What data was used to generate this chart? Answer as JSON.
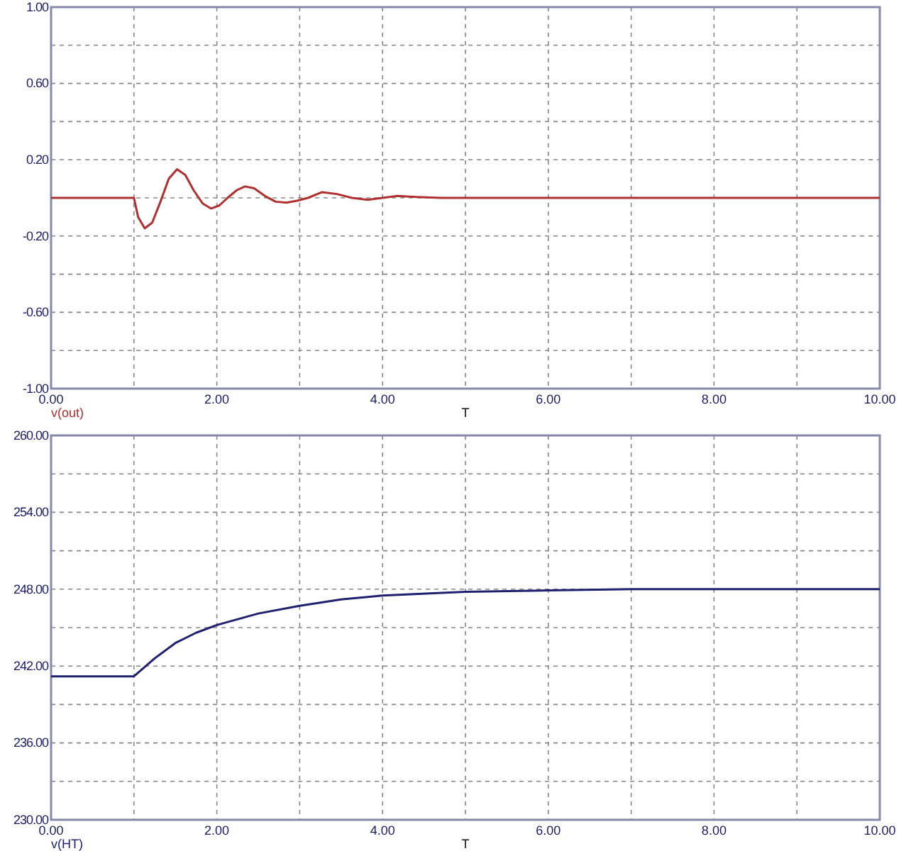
{
  "chart_data": [
    {
      "type": "line",
      "xlabel": "T",
      "legend": "bottom left",
      "grid": true,
      "line_style": "solid",
      "xlim": [
        0,
        10
      ],
      "xticks": [
        {
          "value": 0,
          "label": "0.00"
        },
        {
          "value": 1,
          "label": null
        },
        {
          "value": 2,
          "label": "2.00"
        },
        {
          "value": 3,
          "label": null
        },
        {
          "value": 4,
          "label": "4.00"
        },
        {
          "value": 5,
          "label": null
        },
        {
          "value": 6,
          "label": "6.00"
        },
        {
          "value": 7,
          "label": null
        },
        {
          "value": 8,
          "label": "8.00"
        },
        {
          "value": 9,
          "label": null
        },
        {
          "value": 10,
          "label": "10.00"
        }
      ],
      "ylim": [
        -1,
        1
      ],
      "yticks": [
        {
          "value": -1,
          "label": "-1.00"
        },
        {
          "value": -0.8,
          "label": null
        },
        {
          "value": -0.6,
          "label": "-0.60"
        },
        {
          "value": -0.4,
          "label": null
        },
        {
          "value": -0.2,
          "label": "-0.20"
        },
        {
          "value": 0,
          "label": null
        },
        {
          "value": 0.2,
          "label": "0.20"
        },
        {
          "value": 0.4,
          "label": null
        },
        {
          "value": 0.6,
          "label": "0.60"
        },
        {
          "value": 0.8,
          "label": null
        },
        {
          "value": 1,
          "label": "1.00"
        }
      ],
      "series": [
        {
          "name": "v(out)",
          "color": "#b03030",
          "x": [
            0,
            1,
            1.05,
            1.13,
            1.22,
            1.32,
            1.42,
            1.52,
            1.62,
            1.72,
            1.83,
            1.93,
            2.03,
            2.13,
            2.24,
            2.34,
            2.45,
            2.58,
            2.71,
            2.84,
            2.97,
            3.1,
            3.27,
            3.45,
            3.63,
            3.82,
            4.0,
            4.18,
            4.4,
            4.7,
            5.0,
            10
          ],
          "values": [
            0,
            0,
            -0.1,
            -0.16,
            -0.13,
            -0.02,
            0.1,
            0.15,
            0.12,
            0.04,
            -0.03,
            -0.056,
            -0.04,
            0.0,
            0.04,
            0.06,
            0.05,
            0.01,
            -0.02,
            -0.025,
            -0.015,
            0.0,
            0.03,
            0.02,
            0.0,
            -0.01,
            0.0,
            0.01,
            0.005,
            0.0,
            0,
            0
          ]
        }
      ]
    },
    {
      "type": "line",
      "xlabel": "T",
      "legend": "bottom left",
      "grid": true,
      "line_style": "solid",
      "xlim": [
        0,
        10
      ],
      "xticks": [
        {
          "value": 0,
          "label": "0.00"
        },
        {
          "value": 1,
          "label": null
        },
        {
          "value": 2,
          "label": "2.00"
        },
        {
          "value": 3,
          "label": null
        },
        {
          "value": 4,
          "label": "4.00"
        },
        {
          "value": 5,
          "label": null
        },
        {
          "value": 6,
          "label": "6.00"
        },
        {
          "value": 7,
          "label": null
        },
        {
          "value": 8,
          "label": "8.00"
        },
        {
          "value": 9,
          "label": null
        },
        {
          "value": 10,
          "label": "10.00"
        }
      ],
      "ylim": [
        230,
        260
      ],
      "yticks": [
        {
          "value": 230,
          "label": "230.00"
        },
        {
          "value": 233,
          "label": null
        },
        {
          "value": 236,
          "label": "236.00"
        },
        {
          "value": 239,
          "label": null
        },
        {
          "value": 242,
          "label": "242.00"
        },
        {
          "value": 245,
          "label": null
        },
        {
          "value": 248,
          "label": "248.00"
        },
        {
          "value": 251,
          "label": null
        },
        {
          "value": 254,
          "label": "254.00"
        },
        {
          "value": 257,
          "label": null
        },
        {
          "value": 260,
          "label": "260.00"
        }
      ],
      "series": [
        {
          "name": "v(HT)",
          "color": "#202070",
          "x": [
            0,
            1,
            1.25,
            1.5,
            1.75,
            2,
            2.5,
            3,
            3.5,
            4,
            5,
            6,
            7,
            10
          ],
          "values": [
            241.2,
            241.2,
            242.6,
            243.8,
            244.6,
            245.2,
            246.1,
            246.7,
            247.2,
            247.5,
            247.8,
            247.9,
            248.0,
            248.0
          ]
        }
      ]
    }
  ]
}
